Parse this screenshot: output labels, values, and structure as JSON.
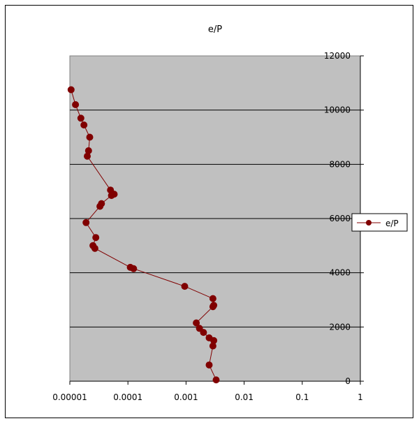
{
  "chart_data": {
    "type": "line",
    "title": "e/P",
    "xscale": "log",
    "xlim": [
      1e-05,
      1
    ],
    "ylim": [
      0,
      12000
    ],
    "xticks": [
      "0.00001",
      "0.0001",
      "0.001",
      "0.01",
      "0.1",
      "1"
    ],
    "yticks": [
      "0",
      "2000",
      "4000",
      "6000",
      "8000",
      "10000",
      "12000"
    ],
    "grid": "horizontal major gridlines",
    "legend_position": "right",
    "series": [
      {
        "name": "e/P",
        "color": "#800000",
        "points": [
          {
            "x": 1.05e-05,
            "y": 10750
          },
          {
            "x": 1.25e-05,
            "y": 10200
          },
          {
            "x": 1.55e-05,
            "y": 9700
          },
          {
            "x": 1.75e-05,
            "y": 9450
          },
          {
            "x": 2.2e-05,
            "y": 9000
          },
          {
            "x": 2.1e-05,
            "y": 8500
          },
          {
            "x": 2e-05,
            "y": 8300
          },
          {
            "x": 5e-05,
            "y": 7050
          },
          {
            "x": 5.8e-05,
            "y": 6900
          },
          {
            "x": 5.2e-05,
            "y": 6850
          },
          {
            "x": 3.5e-05,
            "y": 6550
          },
          {
            "x": 3.3e-05,
            "y": 6450
          },
          {
            "x": 1.9e-05,
            "y": 5850
          },
          {
            "x": 2.8e-05,
            "y": 5300
          },
          {
            "x": 2.5e-05,
            "y": 5000
          },
          {
            "x": 2.7e-05,
            "y": 4900
          },
          {
            "x": 0.00011,
            "y": 4200
          },
          {
            "x": 0.000125,
            "y": 4150
          },
          {
            "x": 0.00095,
            "y": 3500
          },
          {
            "x": 0.0029,
            "y": 3050
          },
          {
            "x": 0.003,
            "y": 2800
          },
          {
            "x": 0.0029,
            "y": 2750
          },
          {
            "x": 0.0015,
            "y": 2150
          },
          {
            "x": 0.0017,
            "y": 1950
          },
          {
            "x": 0.002,
            "y": 1800
          },
          {
            "x": 0.0025,
            "y": 1600
          },
          {
            "x": 0.003,
            "y": 1500
          },
          {
            "x": 0.0029,
            "y": 1300
          },
          {
            "x": 0.0025,
            "y": 600
          },
          {
            "x": 0.0033,
            "y": 50
          }
        ]
      }
    ]
  }
}
